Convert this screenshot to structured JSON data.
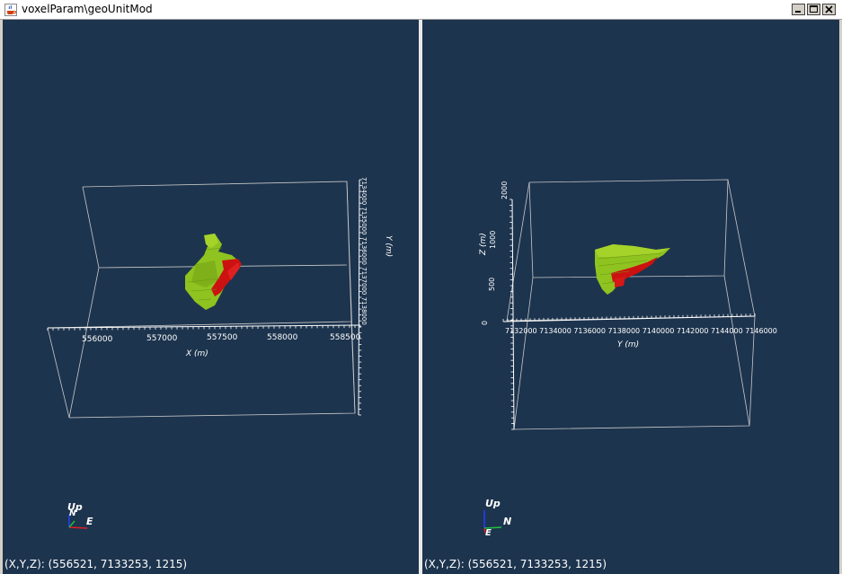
{
  "window": {
    "title": "voxelParam\\geoUnitMod",
    "icon": "java-cup-icon",
    "controls": [
      "minimize",
      "maximize",
      "close"
    ]
  },
  "left_view": {
    "x_ticks": [
      "556000",
      "557000",
      "557500",
      "558000",
      "558500"
    ],
    "x_axis_label": "X (m)",
    "y_axis_label": "Y (m)",
    "y_ticks_text": "7134000 7135000 7136000 7137000 7138000",
    "orientation": {
      "up": "Up",
      "east": "E",
      "north": "N"
    },
    "status": "(X,Y,Z): (556521, 7133253,  1215)"
  },
  "right_view": {
    "y_axis_label": "Y (m)",
    "y_ticks_text": "7132000 7134000 7136000 7138000 7140000 7142000 7144000 7146000",
    "z_ticks": [
      "2000",
      "1000",
      "500",
      "0"
    ],
    "z_axis_label": "Z (m)",
    "orientation": {
      "up": "Up",
      "north": "N",
      "east": "E"
    },
    "status": "(X,Y,Z): (556521, 7133253,  1215)"
  },
  "colors": {
    "background": "#1d344e",
    "body_green": "#8fc31f",
    "body_red": "#cc1111"
  }
}
